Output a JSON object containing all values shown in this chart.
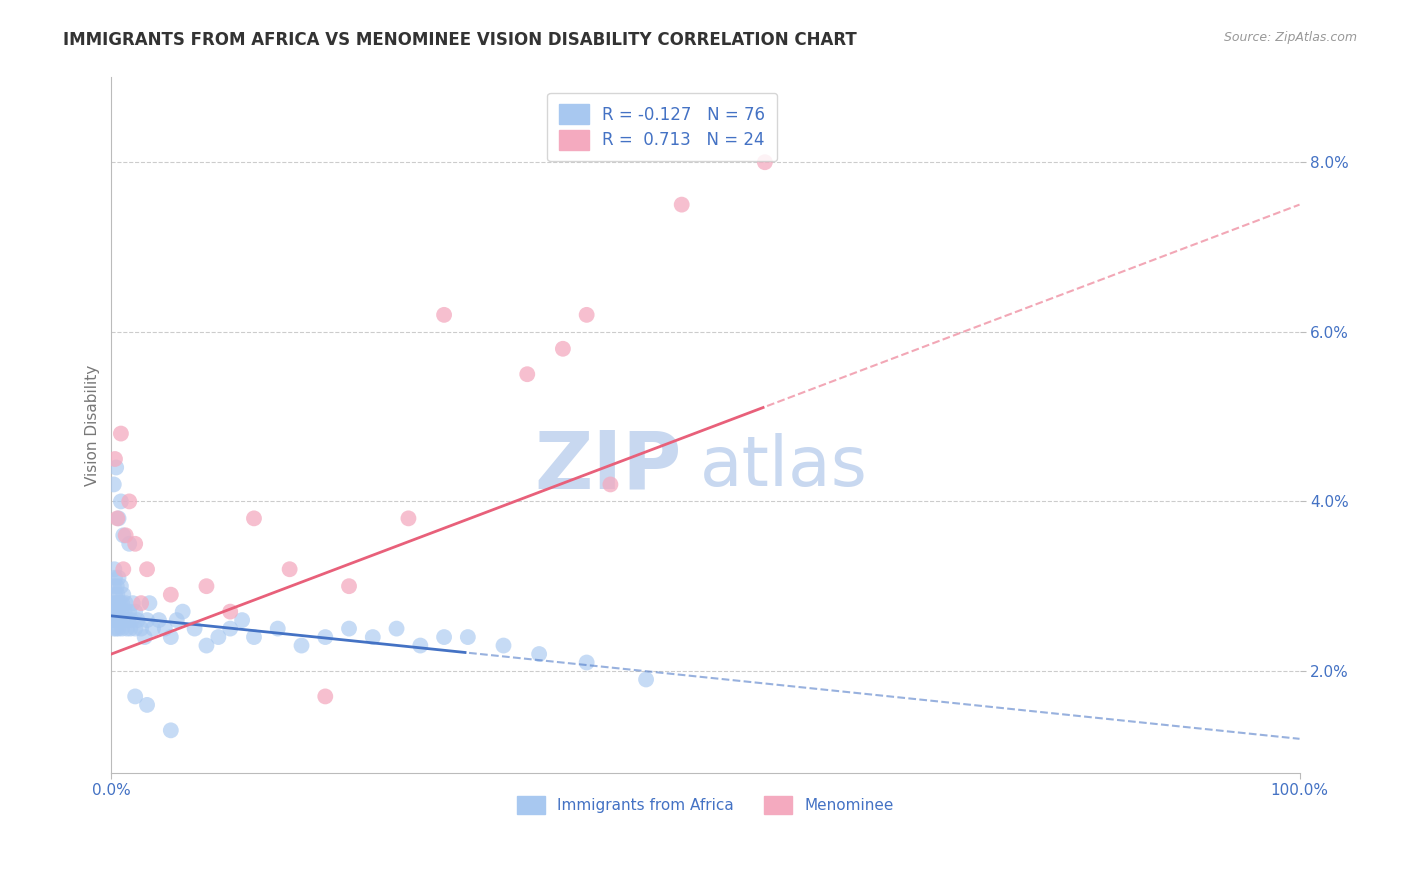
{
  "title": "IMMIGRANTS FROM AFRICA VS MENOMINEE VISION DISABILITY CORRELATION CHART",
  "source": "Source: ZipAtlas.com",
  "ylabel": "Vision Disability",
  "xlim": [
    0.0,
    100.0
  ],
  "ylim": [
    0.8,
    9.0
  ],
  "yticks": [
    2.0,
    4.0,
    6.0,
    8.0
  ],
  "xticks": [
    0.0,
    100.0
  ],
  "legend_r_blue": "-0.127",
  "legend_n_blue": "76",
  "legend_r_pink": "0.713",
  "legend_n_pink": "24",
  "blue_color": "#a8c8f0",
  "pink_color": "#f4aabf",
  "blue_line_color": "#4472c4",
  "pink_line_color": "#e8607a",
  "grid_color": "#cccccc",
  "text_color": "#4472c4",
  "title_color": "#333333",
  "blue_scatter_x": [
    0.1,
    0.15,
    0.2,
    0.2,
    0.25,
    0.25,
    0.3,
    0.3,
    0.3,
    0.35,
    0.4,
    0.4,
    0.45,
    0.5,
    0.5,
    0.5,
    0.6,
    0.6,
    0.6,
    0.7,
    0.7,
    0.8,
    0.8,
    0.9,
    0.9,
    1.0,
    1.0,
    1.1,
    1.2,
    1.3,
    1.4,
    1.5,
    1.6,
    1.7,
    1.8,
    2.0,
    2.0,
    2.2,
    2.5,
    2.8,
    3.0,
    3.2,
    3.5,
    4.0,
    4.5,
    5.0,
    5.5,
    6.0,
    7.0,
    8.0,
    9.0,
    10.0,
    11.0,
    12.0,
    14.0,
    16.0,
    18.0,
    20.0,
    22.0,
    24.0,
    26.0,
    28.0,
    30.0,
    33.0,
    36.0,
    40.0,
    45.0,
    0.2,
    0.4,
    0.6,
    0.8,
    1.0,
    1.5,
    2.0,
    3.0,
    5.0
  ],
  "blue_scatter_y": [
    2.6,
    2.8,
    3.0,
    2.5,
    3.2,
    2.7,
    2.9,
    3.1,
    2.6,
    2.8,
    2.7,
    2.5,
    3.0,
    2.8,
    2.6,
    2.9,
    2.7,
    3.1,
    2.5,
    2.8,
    2.6,
    2.7,
    3.0,
    2.5,
    2.8,
    2.6,
    2.9,
    2.7,
    2.8,
    2.5,
    2.6,
    2.7,
    2.5,
    2.6,
    2.8,
    2.5,
    2.7,
    2.6,
    2.5,
    2.4,
    2.6,
    2.8,
    2.5,
    2.6,
    2.5,
    2.4,
    2.6,
    2.7,
    2.5,
    2.3,
    2.4,
    2.5,
    2.6,
    2.4,
    2.5,
    2.3,
    2.4,
    2.5,
    2.4,
    2.5,
    2.3,
    2.4,
    2.4,
    2.3,
    2.2,
    2.1,
    1.9,
    4.2,
    4.4,
    3.8,
    4.0,
    3.6,
    3.5,
    1.7,
    1.6,
    1.3
  ],
  "pink_scatter_x": [
    0.3,
    0.5,
    0.8,
    1.0,
    1.2,
    1.5,
    2.0,
    2.5,
    3.0,
    5.0,
    8.0,
    10.0,
    12.0,
    15.0,
    18.0,
    20.0,
    25.0,
    28.0,
    35.0,
    38.0,
    40.0,
    42.0,
    48.0,
    55.0
  ],
  "pink_scatter_y": [
    4.5,
    3.8,
    4.8,
    3.2,
    3.6,
    4.0,
    3.5,
    2.8,
    3.2,
    2.9,
    3.0,
    2.7,
    3.8,
    3.2,
    1.7,
    3.0,
    3.8,
    6.2,
    5.5,
    5.8,
    6.2,
    4.2,
    7.5,
    8.0
  ],
  "watermark_zip": "ZIP",
  "watermark_atlas": "atlas",
  "watermark_color": "#c8d8f0"
}
